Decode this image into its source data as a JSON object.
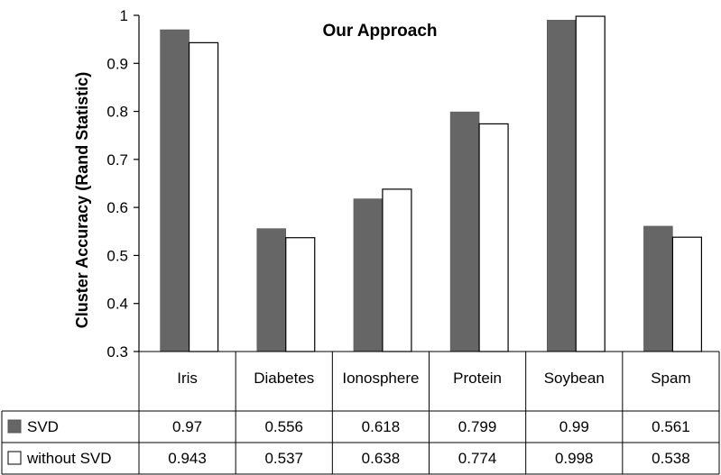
{
  "chart_data": {
    "type": "bar",
    "title": "Our Approach",
    "ylabel": "Cluster Accuracy (Rand Statistic)",
    "xlabel": "",
    "ylim": [
      0.3,
      1
    ],
    "yticks": [
      "0.3",
      "0.4",
      "0.5",
      "0.6",
      "0.7",
      "0.8",
      "0.9",
      "1"
    ],
    "categories": [
      "Iris",
      "Diabetes",
      "Ionosphere",
      "Protein",
      "Soybean",
      "Spam"
    ],
    "series": [
      {
        "name": "SVD",
        "color": "#666666",
        "values": [
          0.97,
          0.556,
          0.618,
          0.799,
          0.99,
          0.561
        ],
        "labels": [
          "0.97",
          "0.556",
          "0.618",
          "0.799",
          "0.99",
          "0.561"
        ]
      },
      {
        "name": "without SVD",
        "color": "#ffffff",
        "values": [
          0.943,
          0.537,
          0.638,
          0.774,
          0.998,
          0.538
        ],
        "labels": [
          "0.943",
          "0.537",
          "0.638",
          "0.774",
          "0.998",
          "0.538"
        ]
      }
    ],
    "grid": false,
    "legend": "table-left",
    "data_table": true
  }
}
